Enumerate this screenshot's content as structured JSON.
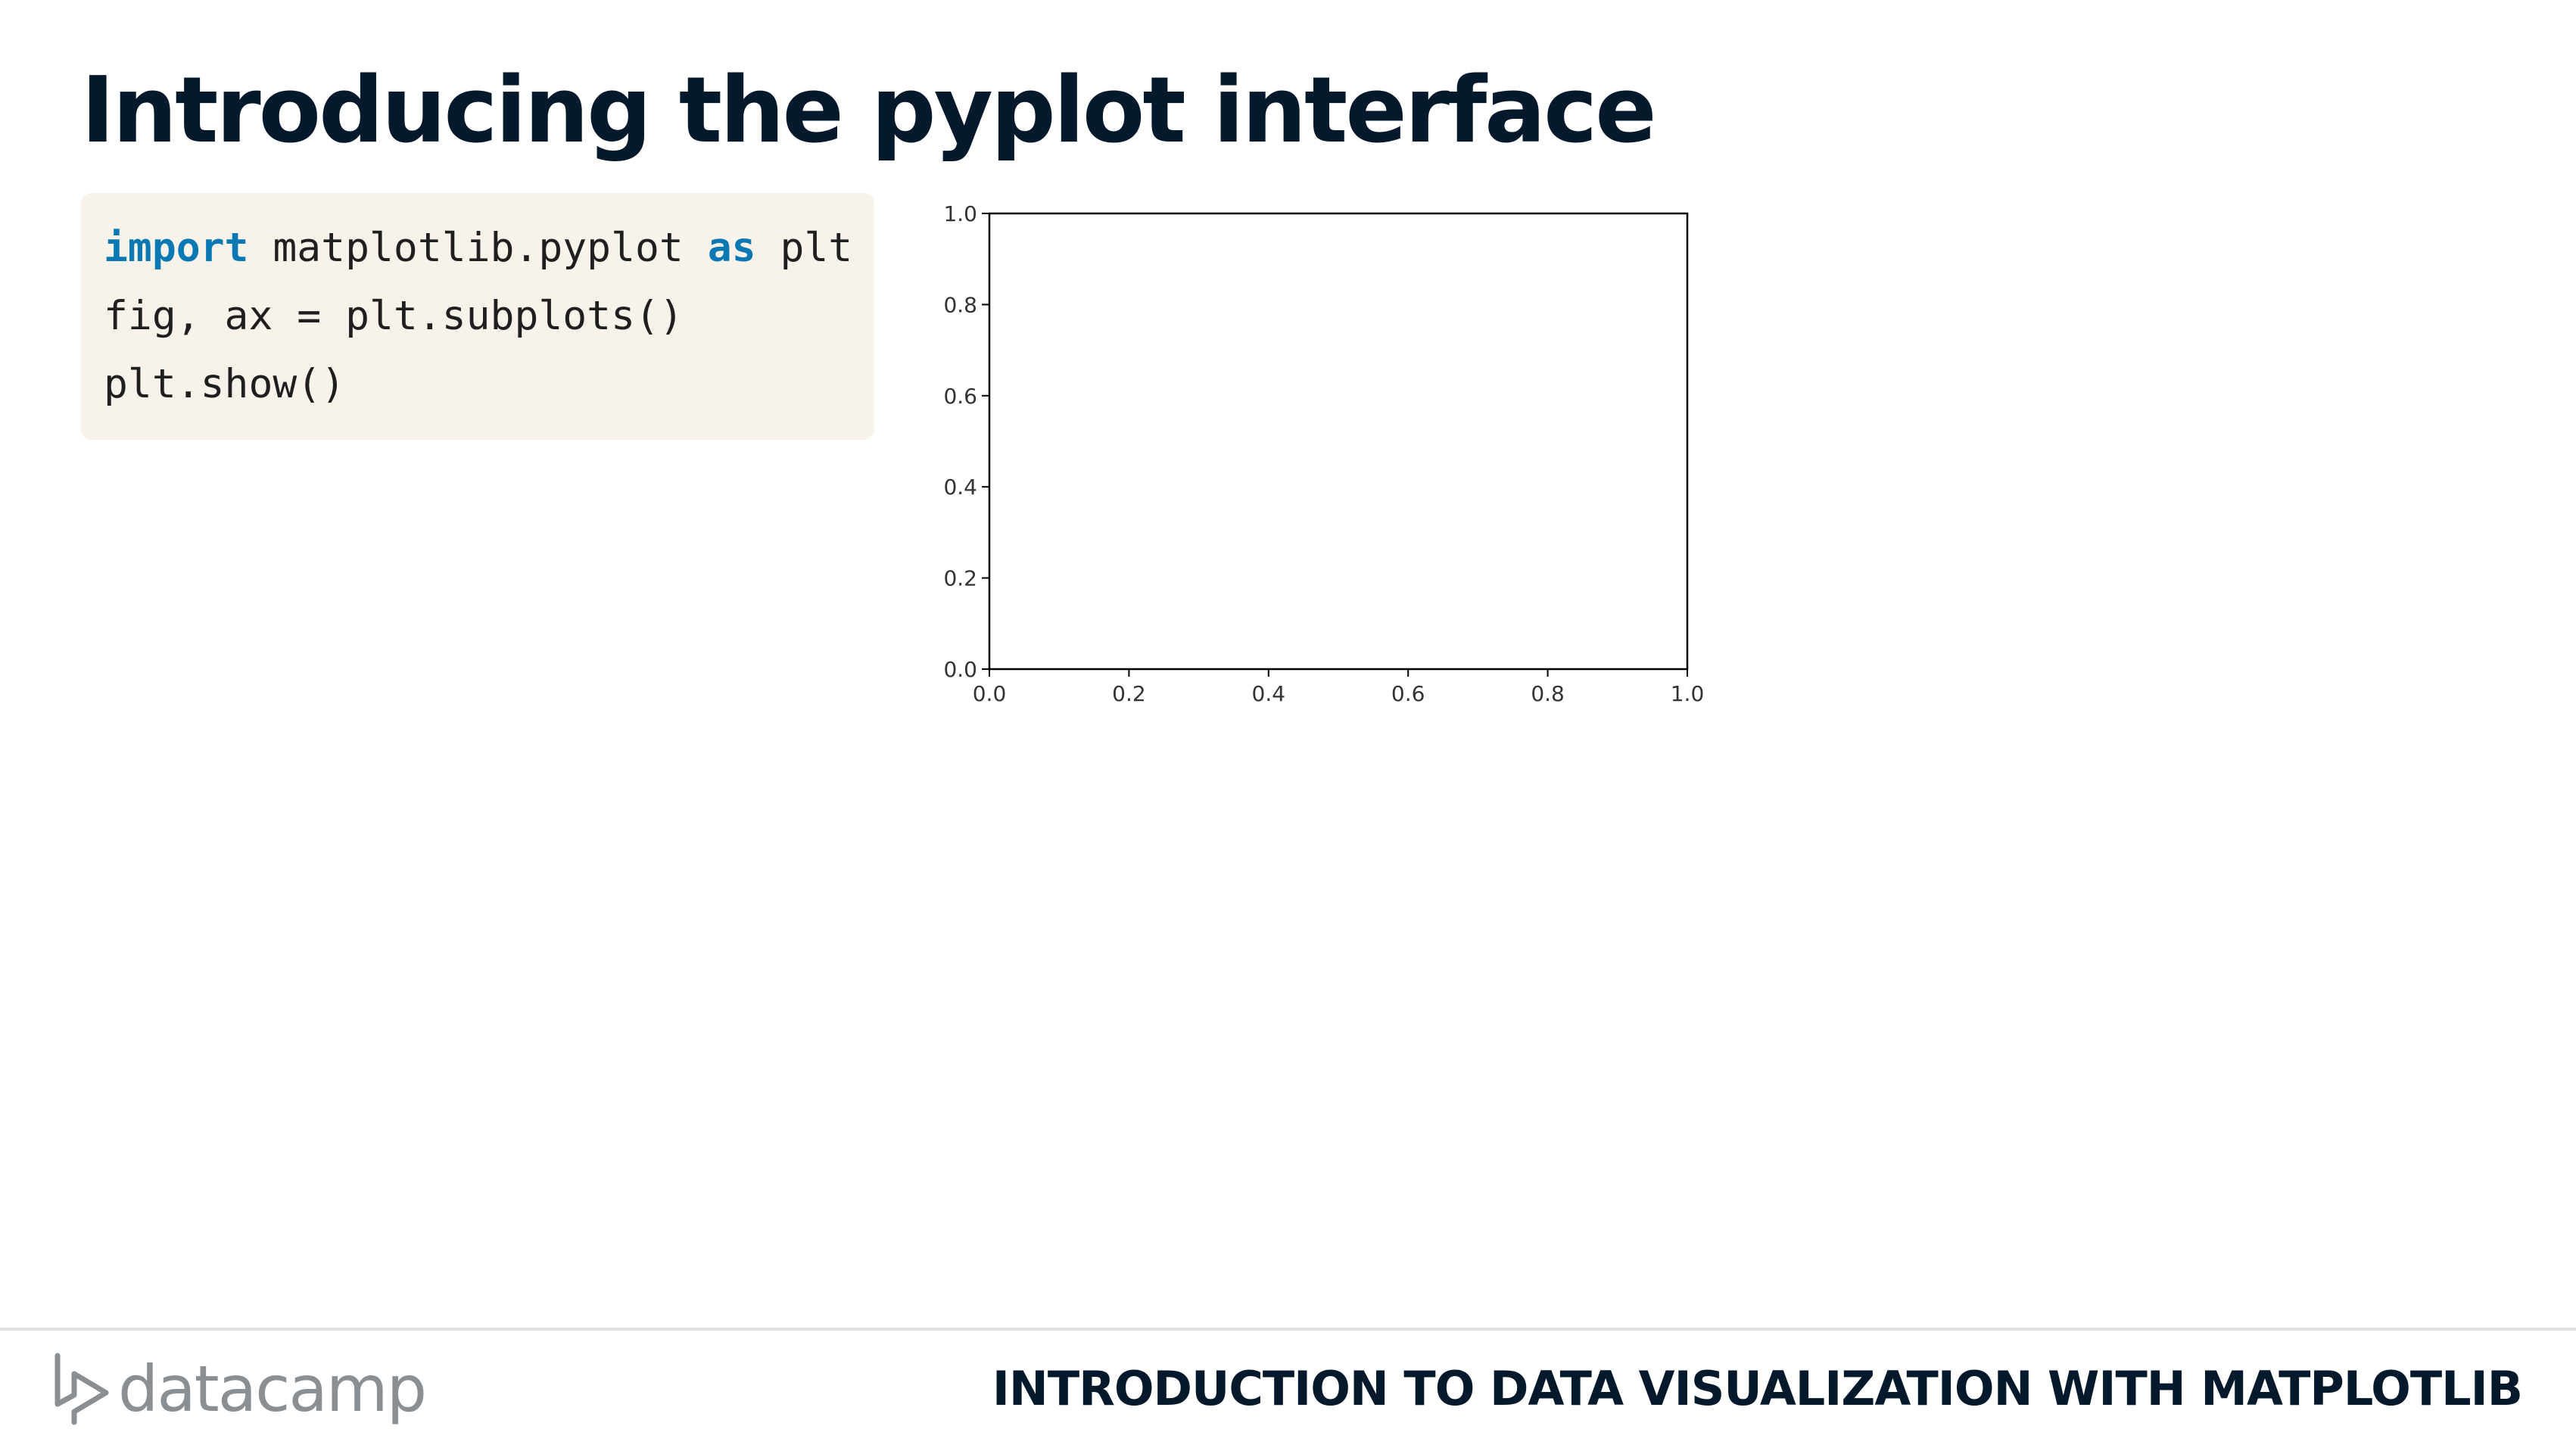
{
  "slide": {
    "title": "Introducing the pyplot interface"
  },
  "code": {
    "lines": [
      {
        "kw1": "import",
        "mid": " matplotlib.pyplot ",
        "kw2": "as",
        "tail": " plt"
      },
      {
        "text": "fig, ax = plt.subplots()"
      },
      {
        "text": "plt.show()"
      }
    ]
  },
  "chart_data": {
    "type": "line",
    "series": [],
    "xlim": [
      0.0,
      1.0
    ],
    "ylim": [
      0.0,
      1.0
    ],
    "x_ticks": [
      "0.0",
      "0.2",
      "0.4",
      "0.6",
      "0.8",
      "1.0"
    ],
    "y_ticks": [
      "0.0",
      "0.2",
      "0.4",
      "0.6",
      "0.8",
      "1.0"
    ],
    "title": "",
    "xlabel": "",
    "ylabel": "",
    "grid": false
  },
  "footer": {
    "brand": "datacamp",
    "course": "INTRODUCTION TO DATA VISUALIZATION WITH MATPLOTLIB"
  },
  "colors": {
    "title": "#05192d",
    "keyword": "#0a78b2",
    "code_bg": "#f7f3eb",
    "logo": "#8a8f94"
  }
}
